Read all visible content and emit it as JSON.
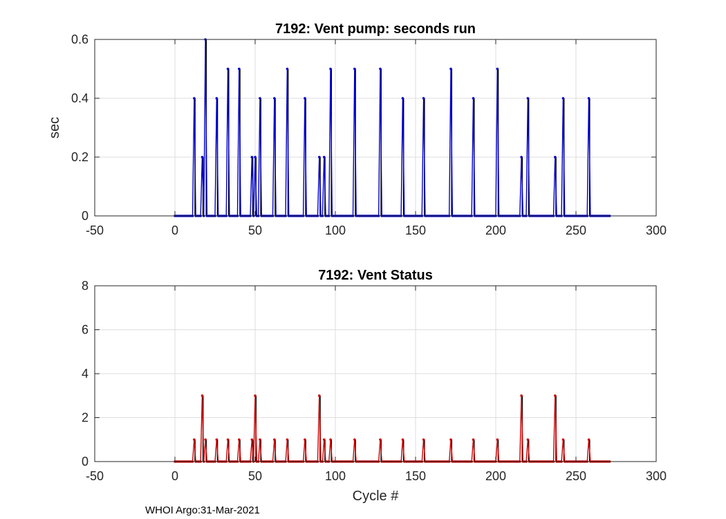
{
  "chart_data": [
    {
      "type": "line",
      "title": "7192: Vent pump: seconds run",
      "xlabel": "",
      "ylabel": "sec",
      "xlim": [
        -50,
        300
      ],
      "ylim": [
        0,
        0.6
      ],
      "xticks": [
        -50,
        0,
        50,
        100,
        150,
        200,
        250,
        300
      ],
      "yticks": [
        0,
        0.2,
        0.4,
        0.6
      ],
      "ytick_labels": [
        "0",
        "0.2",
        "0.4",
        "0.6"
      ],
      "grid": true,
      "series_color": "#0000cc",
      "stem_color": "#000000",
      "cycle_range": [
        0,
        271
      ],
      "nonzero_points": [
        [
          12,
          0.4
        ],
        [
          17,
          0.2
        ],
        [
          19,
          0.6
        ],
        [
          26,
          0.4
        ],
        [
          33,
          0.5
        ],
        [
          40,
          0.5
        ],
        [
          48,
          0.2
        ],
        [
          50,
          0.2
        ],
        [
          53,
          0.4
        ],
        [
          62,
          0.4
        ],
        [
          70,
          0.5
        ],
        [
          81,
          0.4
        ],
        [
          90,
          0.2
        ],
        [
          93,
          0.2
        ],
        [
          97,
          0.5
        ],
        [
          112,
          0.5
        ],
        [
          128,
          0.5
        ],
        [
          142,
          0.4
        ],
        [
          155,
          0.4
        ],
        [
          172,
          0.5
        ],
        [
          186,
          0.4
        ],
        [
          201,
          0.5
        ],
        [
          216,
          0.2
        ],
        [
          220,
          0.4
        ],
        [
          237,
          0.2
        ],
        [
          242,
          0.4
        ],
        [
          258,
          0.4
        ]
      ]
    },
    {
      "type": "line",
      "title": "7192: Vent Status",
      "xlabel": "Cycle #",
      "ylabel": "",
      "xlim": [
        -50,
        300
      ],
      "ylim": [
        0,
        8
      ],
      "xticks": [
        -50,
        0,
        50,
        100,
        150,
        200,
        250,
        300
      ],
      "yticks": [
        0,
        2,
        4,
        6,
        8
      ],
      "ytick_labels": [
        "0",
        "2",
        "4",
        "6",
        "8"
      ],
      "grid": true,
      "series_color": "#cc0000",
      "stem_color": "#000000",
      "cycle_range": [
        0,
        271
      ],
      "nonzero_points": [
        [
          12,
          1
        ],
        [
          17,
          3
        ],
        [
          19,
          1
        ],
        [
          26,
          1
        ],
        [
          33,
          1
        ],
        [
          40,
          1
        ],
        [
          48,
          1
        ],
        [
          50,
          3
        ],
        [
          53,
          1
        ],
        [
          62,
          1
        ],
        [
          70,
          1
        ],
        [
          81,
          1
        ],
        [
          90,
          3
        ],
        [
          93,
          1
        ],
        [
          97,
          1
        ],
        [
          112,
          1
        ],
        [
          128,
          1
        ],
        [
          142,
          1
        ],
        [
          155,
          1
        ],
        [
          172,
          1
        ],
        [
          186,
          1
        ],
        [
          201,
          1
        ],
        [
          216,
          3
        ],
        [
          220,
          1
        ],
        [
          237,
          3
        ],
        [
          242,
          1
        ],
        [
          258,
          1
        ]
      ]
    }
  ],
  "footer": "WHOI Argo:31-Mar-2021"
}
